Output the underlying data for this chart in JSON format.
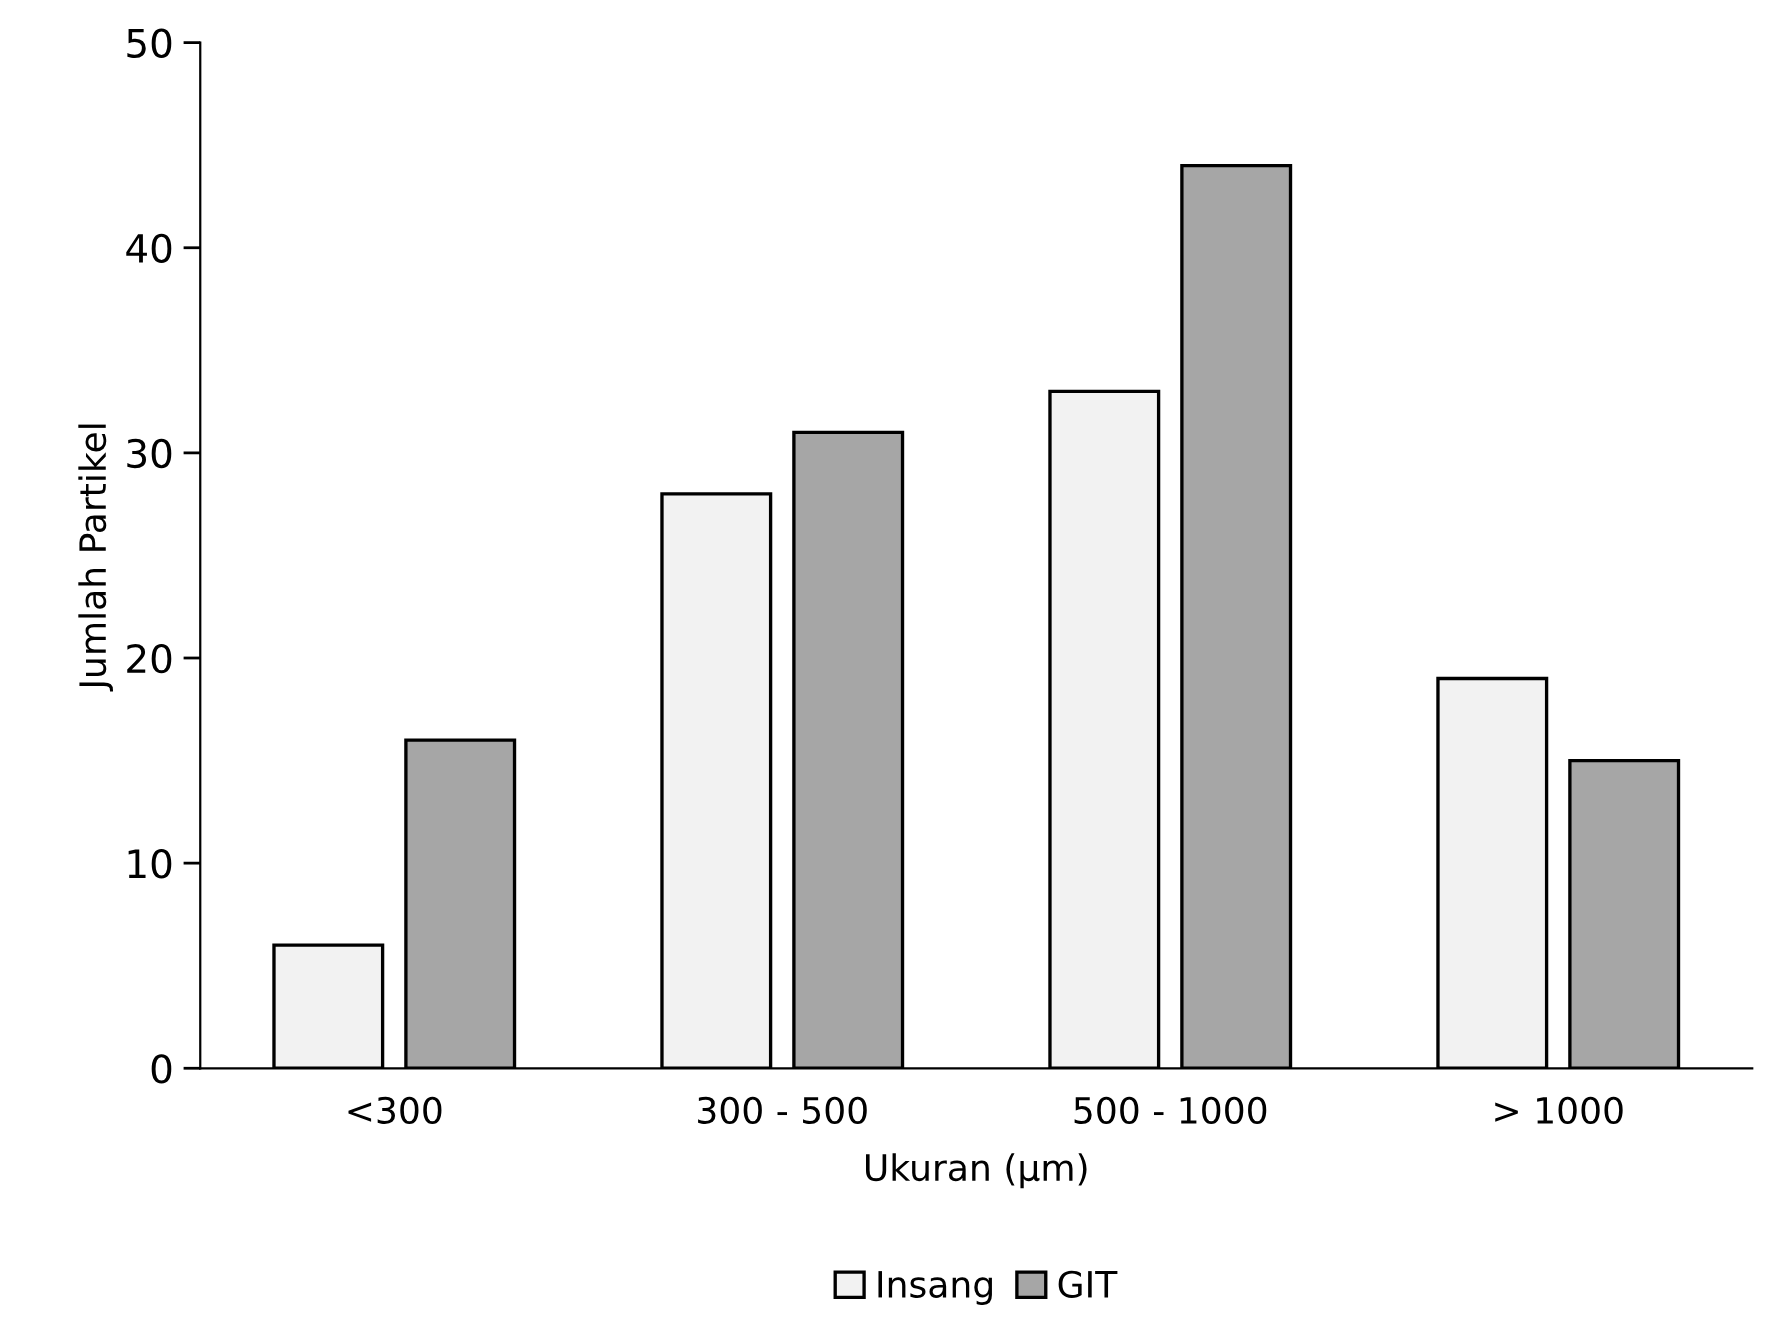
{
  "chart_data": {
    "type": "bar",
    "xlabel": "Ukuran (µm)",
    "ylabel": "Jumlah Partikel",
    "categories": [
      "<300",
      "300 - 500",
      "500 - 1000",
      "> 1000"
    ],
    "series": [
      {
        "name": "Insang",
        "color": "#f2f2f2",
        "values": [
          6,
          28,
          33,
          19
        ]
      },
      {
        "name": "GIT",
        "color": "#a6a6a6",
        "values": [
          16,
          31,
          44,
          15
        ]
      }
    ],
    "ylim": [
      0,
      50
    ],
    "yticks": [
      0,
      10,
      20,
      30,
      40,
      50
    ],
    "grid": false,
    "legend": "bottom"
  }
}
